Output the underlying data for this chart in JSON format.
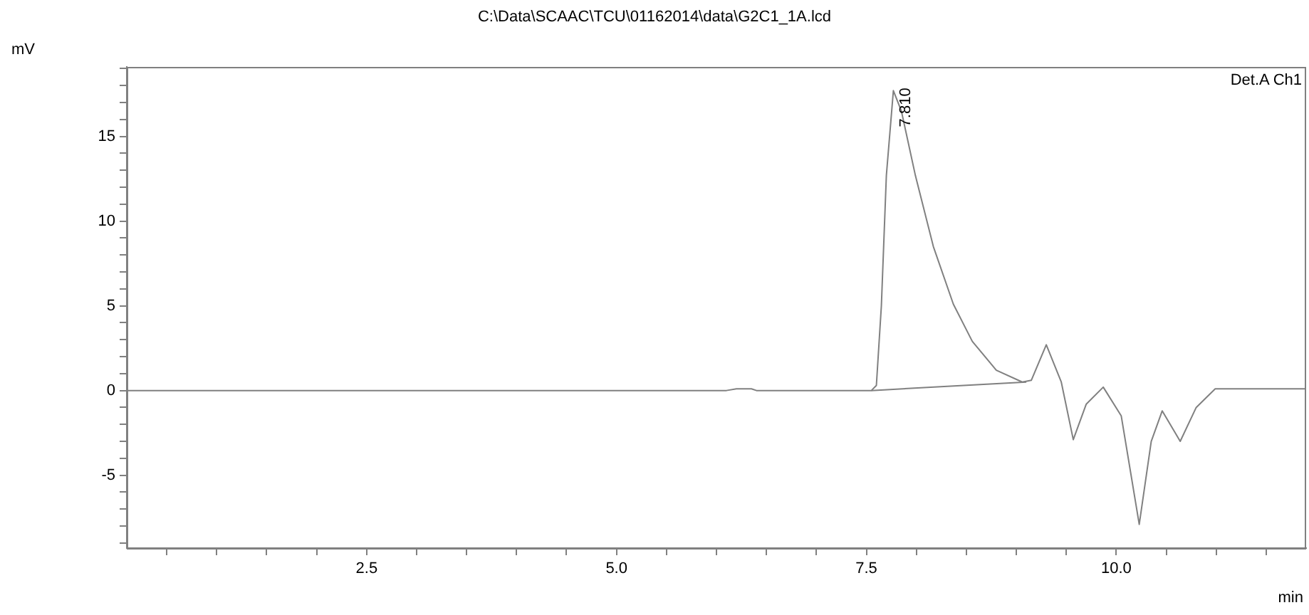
{
  "chart_data": {
    "type": "line",
    "title": "C:\\Data\\SCAAC\\TCU\\01162014\\data\\G2C1_1A.lcd",
    "xlabel": "min",
    "ylabel": "mV",
    "xlim": [
      0.1,
      11.9
    ],
    "ylim": [
      -9.3,
      19.1
    ],
    "xticks": [
      {
        "value": 0.5,
        "label": null
      },
      {
        "value": 1,
        "label": null
      },
      {
        "value": 1.5,
        "label": null
      },
      {
        "value": 2,
        "label": null
      },
      {
        "value": 2.5,
        "label": "2.5"
      },
      {
        "value": 3,
        "label": null
      },
      {
        "value": 3.5,
        "label": null
      },
      {
        "value": 4,
        "label": null
      },
      {
        "value": 4.5,
        "label": null
      },
      {
        "value": 5,
        "label": "5.0"
      },
      {
        "value": 5.5,
        "label": null
      },
      {
        "value": 6,
        "label": null
      },
      {
        "value": 6.5,
        "label": null
      },
      {
        "value": 7,
        "label": null
      },
      {
        "value": 7.5,
        "label": "7.5"
      },
      {
        "value": 8,
        "label": null
      },
      {
        "value": 8.5,
        "label": null
      },
      {
        "value": 9,
        "label": null
      },
      {
        "value": 9.5,
        "label": null
      },
      {
        "value": 10,
        "label": "10.0"
      },
      {
        "value": 10.5,
        "label": null
      },
      {
        "value": 11,
        "label": null
      },
      {
        "value": 11.5,
        "label": null
      }
    ],
    "yticks": [
      {
        "value": -9,
        "label": null
      },
      {
        "value": -8,
        "label": null
      },
      {
        "value": -7,
        "label": null
      },
      {
        "value": -6,
        "label": null
      },
      -5,
      {
        "value": -4,
        "label": null
      },
      {
        "value": -3,
        "label": null
      },
      {
        "value": -2,
        "label": null
      },
      {
        "value": -1,
        "label": null
      },
      0,
      {
        "value": 1,
        "label": null
      },
      {
        "value": 2,
        "label": null
      },
      {
        "value": 3,
        "label": null
      },
      {
        "value": 4,
        "label": null
      },
      5,
      {
        "value": 6,
        "label": null
      },
      {
        "value": 7,
        "label": null
      },
      {
        "value": 8,
        "label": null
      },
      {
        "value": 9,
        "label": null
      },
      10,
      {
        "value": 11,
        "label": null
      },
      {
        "value": 12,
        "label": null
      },
      {
        "value": 13,
        "label": null
      },
      {
        "value": 14,
        "label": null
      },
      15,
      {
        "value": 16,
        "label": null
      },
      {
        "value": 17,
        "label": null
      },
      {
        "value": 18,
        "label": null
      },
      {
        "value": 19,
        "label": null
      }
    ],
    "series": [
      {
        "color": "#808080",
        "x": [
          0.1,
          6.1,
          6.2,
          6.35,
          6.4,
          7.5,
          7.55,
          7.6,
          7.65,
          7.7,
          7.77,
          7.85,
          7.99,
          8.17,
          8.37,
          8.56,
          8.8,
          9.06,
          9.15,
          9.3,
          9.45,
          9.57,
          9.7,
          9.87,
          10.05,
          10.23,
          10.35,
          10.46,
          10.64,
          10.8,
          10.99,
          11.9
        ],
        "values": [
          0,
          0,
          0.1,
          0.1,
          0,
          0,
          0,
          0.3,
          5,
          12.7,
          17.7,
          16.5,
          12.7,
          8.5,
          5.1,
          2.9,
          1.2,
          0.5,
          0.6,
          2.7,
          0.5,
          -2.9,
          -0.8,
          0.2,
          -1.5,
          -7.9,
          -3,
          -1.2,
          -3,
          -1,
          0.1,
          0.1
        ]
      },
      {
        "color": "#808080",
        "x": [
          7.55,
          9.1
        ],
        "values": [
          0,
          0.5
        ]
      }
    ],
    "annotations": [
      {
        "text": "7.810",
        "x": 7.81,
        "y": 17.7
      },
      "Det.A Ch1"
    ],
    "grid": false,
    "legend": false
  }
}
